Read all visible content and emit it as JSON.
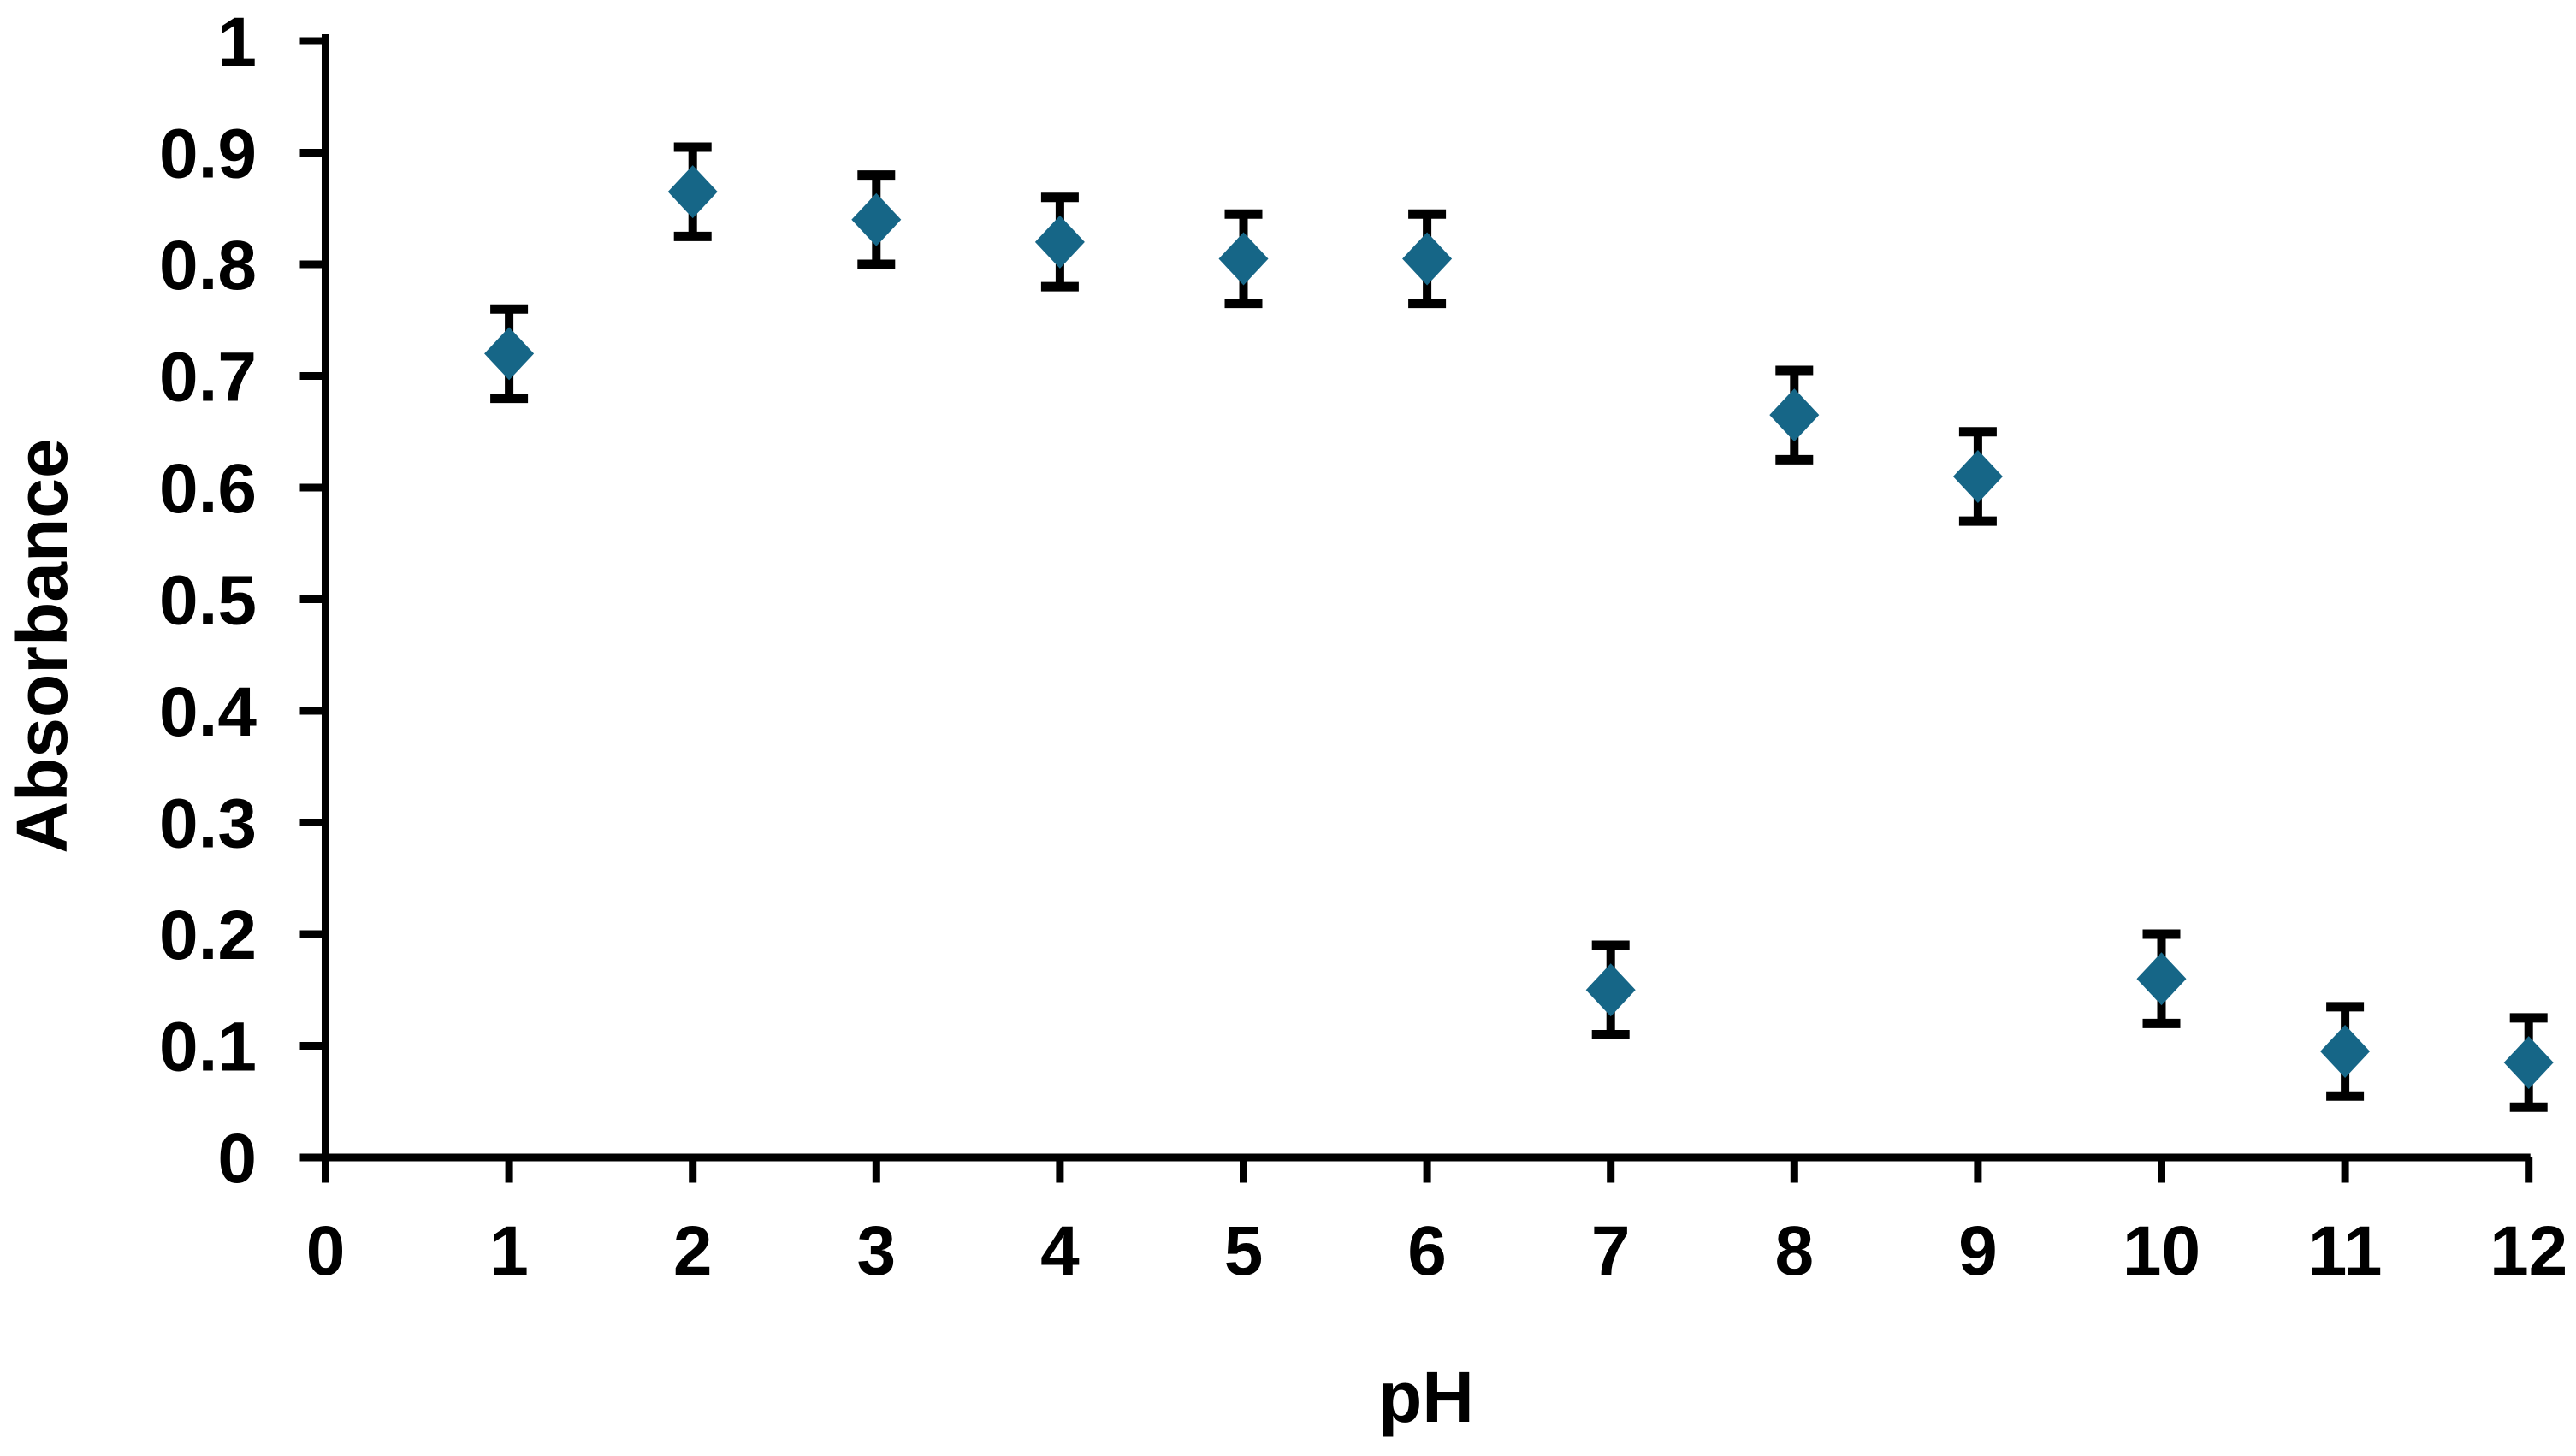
{
  "chart_data": {
    "type": "scatter",
    "title": "",
    "xlabel": "pH",
    "ylabel": "Absorbance",
    "x": [
      1,
      2,
      3,
      4,
      5,
      6,
      7,
      8,
      9,
      10,
      11,
      12
    ],
    "y": [
      0.72,
      0.865,
      0.84,
      0.82,
      0.805,
      0.805,
      0.15,
      0.665,
      0.61,
      0.16,
      0.095,
      0.085
    ],
    "y_err": [
      0.04,
      0.04,
      0.04,
      0.04,
      0.04,
      0.04,
      0.04,
      0.04,
      0.04,
      0.04,
      0.04,
      0.04
    ],
    "xlim": [
      0,
      12
    ],
    "ylim": [
      0,
      1
    ],
    "x_ticks": {
      "values": [
        0,
        1,
        2,
        3,
        4,
        5,
        6,
        7,
        8,
        9,
        10,
        11,
        12
      ],
      "labels": [
        "0",
        "1",
        "2",
        "3",
        "4",
        "5",
        "6",
        "7",
        "8",
        "9",
        "10",
        "11",
        "12"
      ]
    },
    "y_ticks": {
      "values": [
        0,
        0.1,
        0.2,
        0.3,
        0.4,
        0.5,
        0.6,
        0.7,
        0.8,
        0.9,
        1
      ],
      "labels": [
        "0",
        "0.1",
        "0.2",
        "0.3",
        "0.4",
        "0.5",
        "0.6",
        "0.7",
        "0.8",
        "0.9",
        "1"
      ]
    },
    "grid": "off",
    "legend": "none",
    "marker": {
      "shape": "diamond",
      "color": "#166687"
    },
    "error_bar_color": "#000000",
    "axis_color": "#000000",
    "background": "#FFFFFF"
  }
}
